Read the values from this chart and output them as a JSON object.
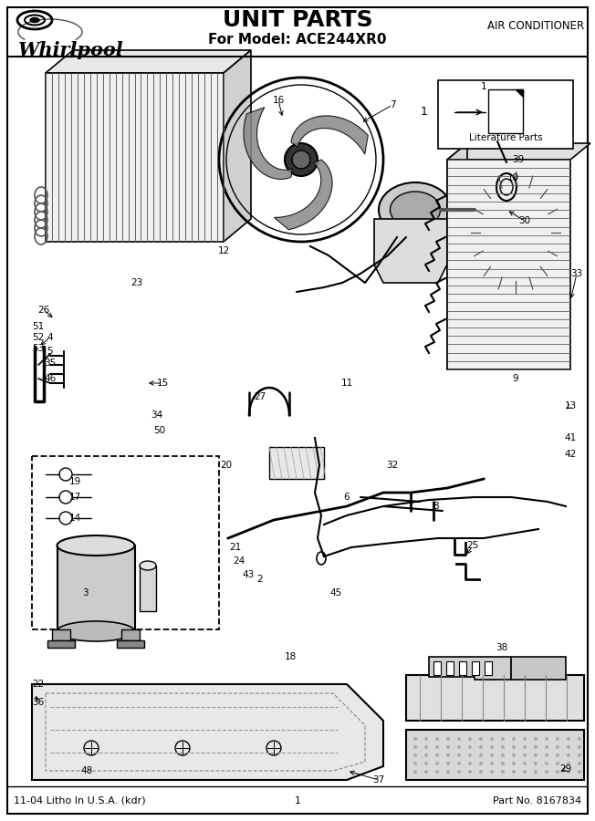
{
  "title": "UNIT PARTS",
  "subtitle": "For Model: ACE244XR0",
  "top_right_text": "AIR CONDITIONER",
  "brand": "Whirlpool",
  "footer_left": "11-04 Litho In U.S.A. (kdr)",
  "footer_center": "1",
  "footer_right": "Part No. 8167834",
  "bg_color": "#ffffff",
  "fig_width": 6.52,
  "fig_height": 9.0,
  "dpi": 100
}
